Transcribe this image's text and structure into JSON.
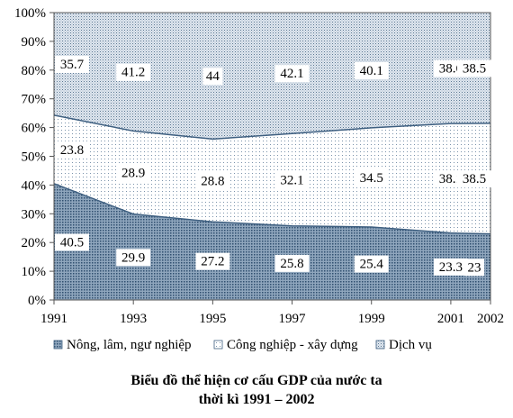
{
  "chart_data": {
    "type": "area",
    "stacked": true,
    "percent": true,
    "title_lines": [
      "Biểu đồ thể hiện cơ cấu GDP của nước ta",
      "thời kì 1991 – 2002"
    ],
    "x": [
      1991,
      1993,
      1995,
      1997,
      1999,
      2001,
      2002
    ],
    "x_tick_labels": [
      "1991",
      "1993",
      "1995",
      "1997",
      "1999",
      "2001",
      "2002"
    ],
    "y_tick_labels": [
      "0%",
      "10%",
      "20%",
      "30%",
      "40%",
      "50%",
      "60%",
      "70%",
      "80%",
      "90%",
      "100%"
    ],
    "ylim": [
      0,
      100
    ],
    "series": [
      {
        "name": "Nông, lâm, ngư nghiệp",
        "values": [
          40.5,
          29.9,
          27.2,
          25.8,
          25.4,
          23.3,
          23
        ],
        "labels": [
          "40.5",
          "29.9",
          "27.2",
          "25.8",
          "25.4",
          "23.3",
          "23"
        ],
        "color": "#1f4e8c",
        "pattern": "dense-dots"
      },
      {
        "name": "Công nghiệp - xây dựng",
        "values": [
          23.8,
          28.9,
          28.8,
          32.1,
          34.5,
          38.1,
          38.5
        ],
        "labels": [
          "23.8",
          "28.9",
          "28.8",
          "32.1",
          "34.5",
          "38.1",
          "38.5"
        ],
        "color": "#1f4e8c",
        "pattern": "sparse-dots"
      },
      {
        "name": "Dịch vụ",
        "values": [
          35.7,
          41.2,
          44,
          42.1,
          40.1,
          38.6,
          38.5
        ],
        "labels": [
          "35.7",
          "41.2",
          "44",
          "42.1",
          "40.1",
          "38.6",
          "38.5"
        ],
        "color": "#1f4e8c",
        "pattern": "medium-dots"
      }
    ],
    "legend_position": "bottom",
    "grid": false
  }
}
